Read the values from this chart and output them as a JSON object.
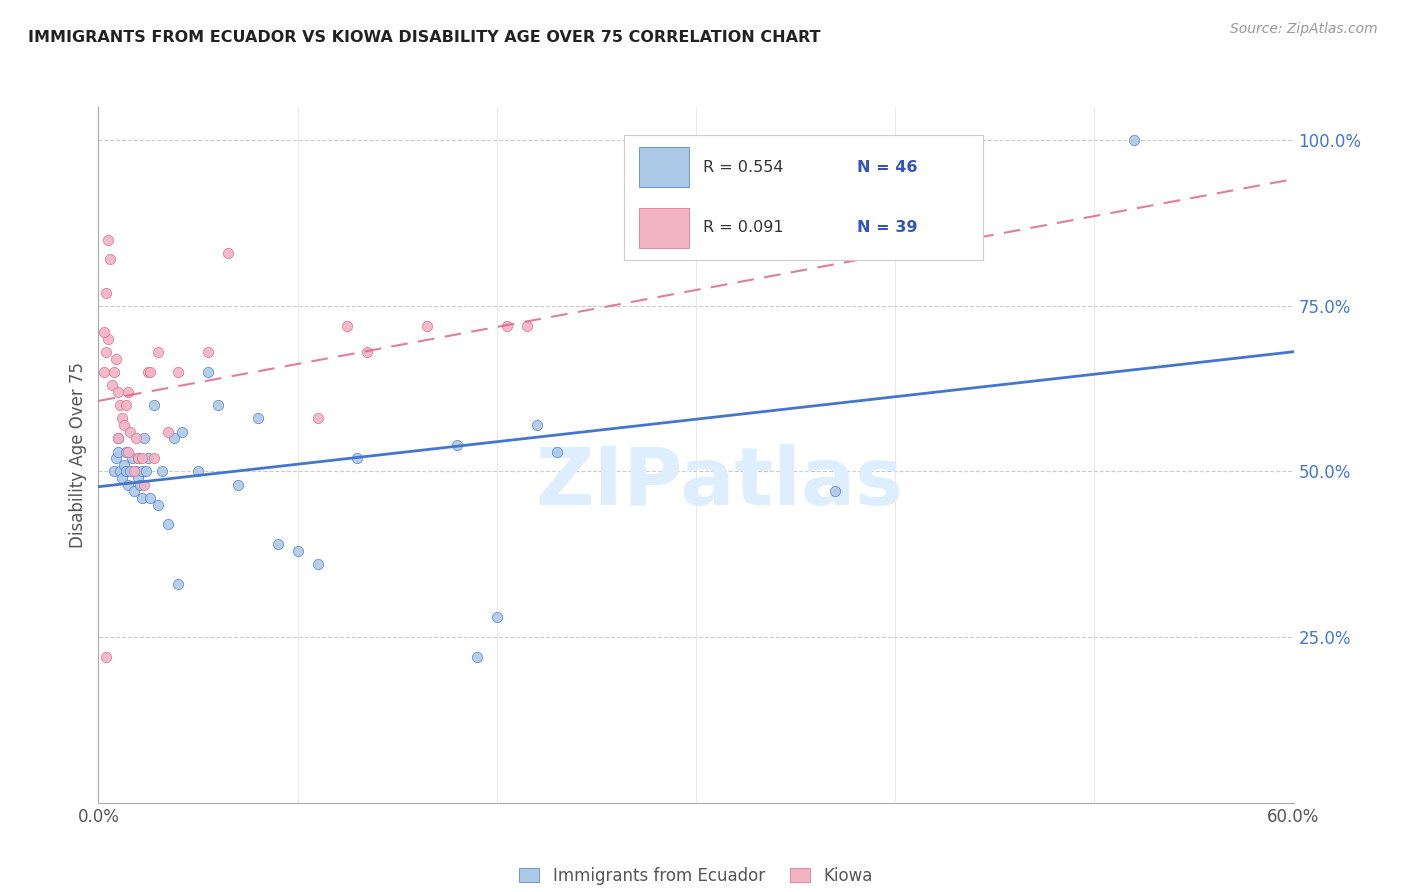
{
  "title": "IMMIGRANTS FROM ECUADOR VS KIOWA DISABILITY AGE OVER 75 CORRELATION CHART",
  "source": "Source: ZipAtlas.com",
  "ylabel": "Disability Age Over 75",
  "xlim": [
    0.0,
    0.6
  ],
  "ylim": [
    0.0,
    1.05
  ],
  "xticks": [
    0.0,
    0.1,
    0.2,
    0.3,
    0.4,
    0.5,
    0.6
  ],
  "xticklabels": [
    "0.0%",
    "",
    "",
    "",
    "",
    "",
    "60.0%"
  ],
  "yticks_right": [
    0.25,
    0.5,
    0.75,
    1.0
  ],
  "ytick_right_labels": [
    "25.0%",
    "50.0%",
    "75.0%",
    "100.0%"
  ],
  "blue_R": 0.554,
  "blue_N": 46,
  "pink_R": 0.091,
  "pink_N": 39,
  "blue_scatter_color": "#adc9e8",
  "pink_scatter_color": "#f2b3c3",
  "blue_line_color": "#4477cc",
  "pink_line_color": "#dd6688",
  "legend_color": "#3355bb",
  "watermark_text": "ZIPatlas",
  "watermark_color": "#ddeeff",
  "background_color": "#ffffff",
  "blue_x": [
    0.008,
    0.009,
    0.01,
    0.01,
    0.011,
    0.012,
    0.013,
    0.014,
    0.014,
    0.015,
    0.016,
    0.017,
    0.018,
    0.019,
    0.02,
    0.02,
    0.021,
    0.022,
    0.022,
    0.023,
    0.024,
    0.025,
    0.026,
    0.028,
    0.03,
    0.032,
    0.035,
    0.038,
    0.04,
    0.042,
    0.05,
    0.055,
    0.06,
    0.07,
    0.08,
    0.09,
    0.1,
    0.11,
    0.13,
    0.18,
    0.19,
    0.2,
    0.22,
    0.23,
    0.37,
    0.52
  ],
  "blue_y": [
    0.5,
    0.52,
    0.53,
    0.55,
    0.5,
    0.49,
    0.51,
    0.5,
    0.53,
    0.48,
    0.5,
    0.52,
    0.47,
    0.5,
    0.52,
    0.49,
    0.48,
    0.5,
    0.46,
    0.55,
    0.5,
    0.52,
    0.46,
    0.6,
    0.45,
    0.5,
    0.42,
    0.55,
    0.33,
    0.56,
    0.5,
    0.65,
    0.6,
    0.48,
    0.58,
    0.39,
    0.38,
    0.36,
    0.52,
    0.54,
    0.22,
    0.28,
    0.57,
    0.53,
    0.47,
    1.0
  ],
  "pink_x": [
    0.003,
    0.004,
    0.005,
    0.005,
    0.006,
    0.007,
    0.008,
    0.009,
    0.01,
    0.01,
    0.011,
    0.012,
    0.013,
    0.014,
    0.015,
    0.015,
    0.016,
    0.018,
    0.019,
    0.02,
    0.022,
    0.023,
    0.025,
    0.026,
    0.028,
    0.03,
    0.035,
    0.04,
    0.055,
    0.065,
    0.11,
    0.125,
    0.135,
    0.165,
    0.205,
    0.215,
    0.004,
    0.004,
    0.003
  ],
  "pink_y": [
    0.65,
    0.68,
    0.7,
    0.85,
    0.82,
    0.63,
    0.65,
    0.67,
    0.55,
    0.62,
    0.6,
    0.58,
    0.57,
    0.6,
    0.62,
    0.53,
    0.56,
    0.5,
    0.55,
    0.52,
    0.52,
    0.48,
    0.65,
    0.65,
    0.52,
    0.68,
    0.56,
    0.65,
    0.68,
    0.83,
    0.58,
    0.72,
    0.68,
    0.72,
    0.72,
    0.72,
    0.22,
    0.77,
    0.71
  ]
}
